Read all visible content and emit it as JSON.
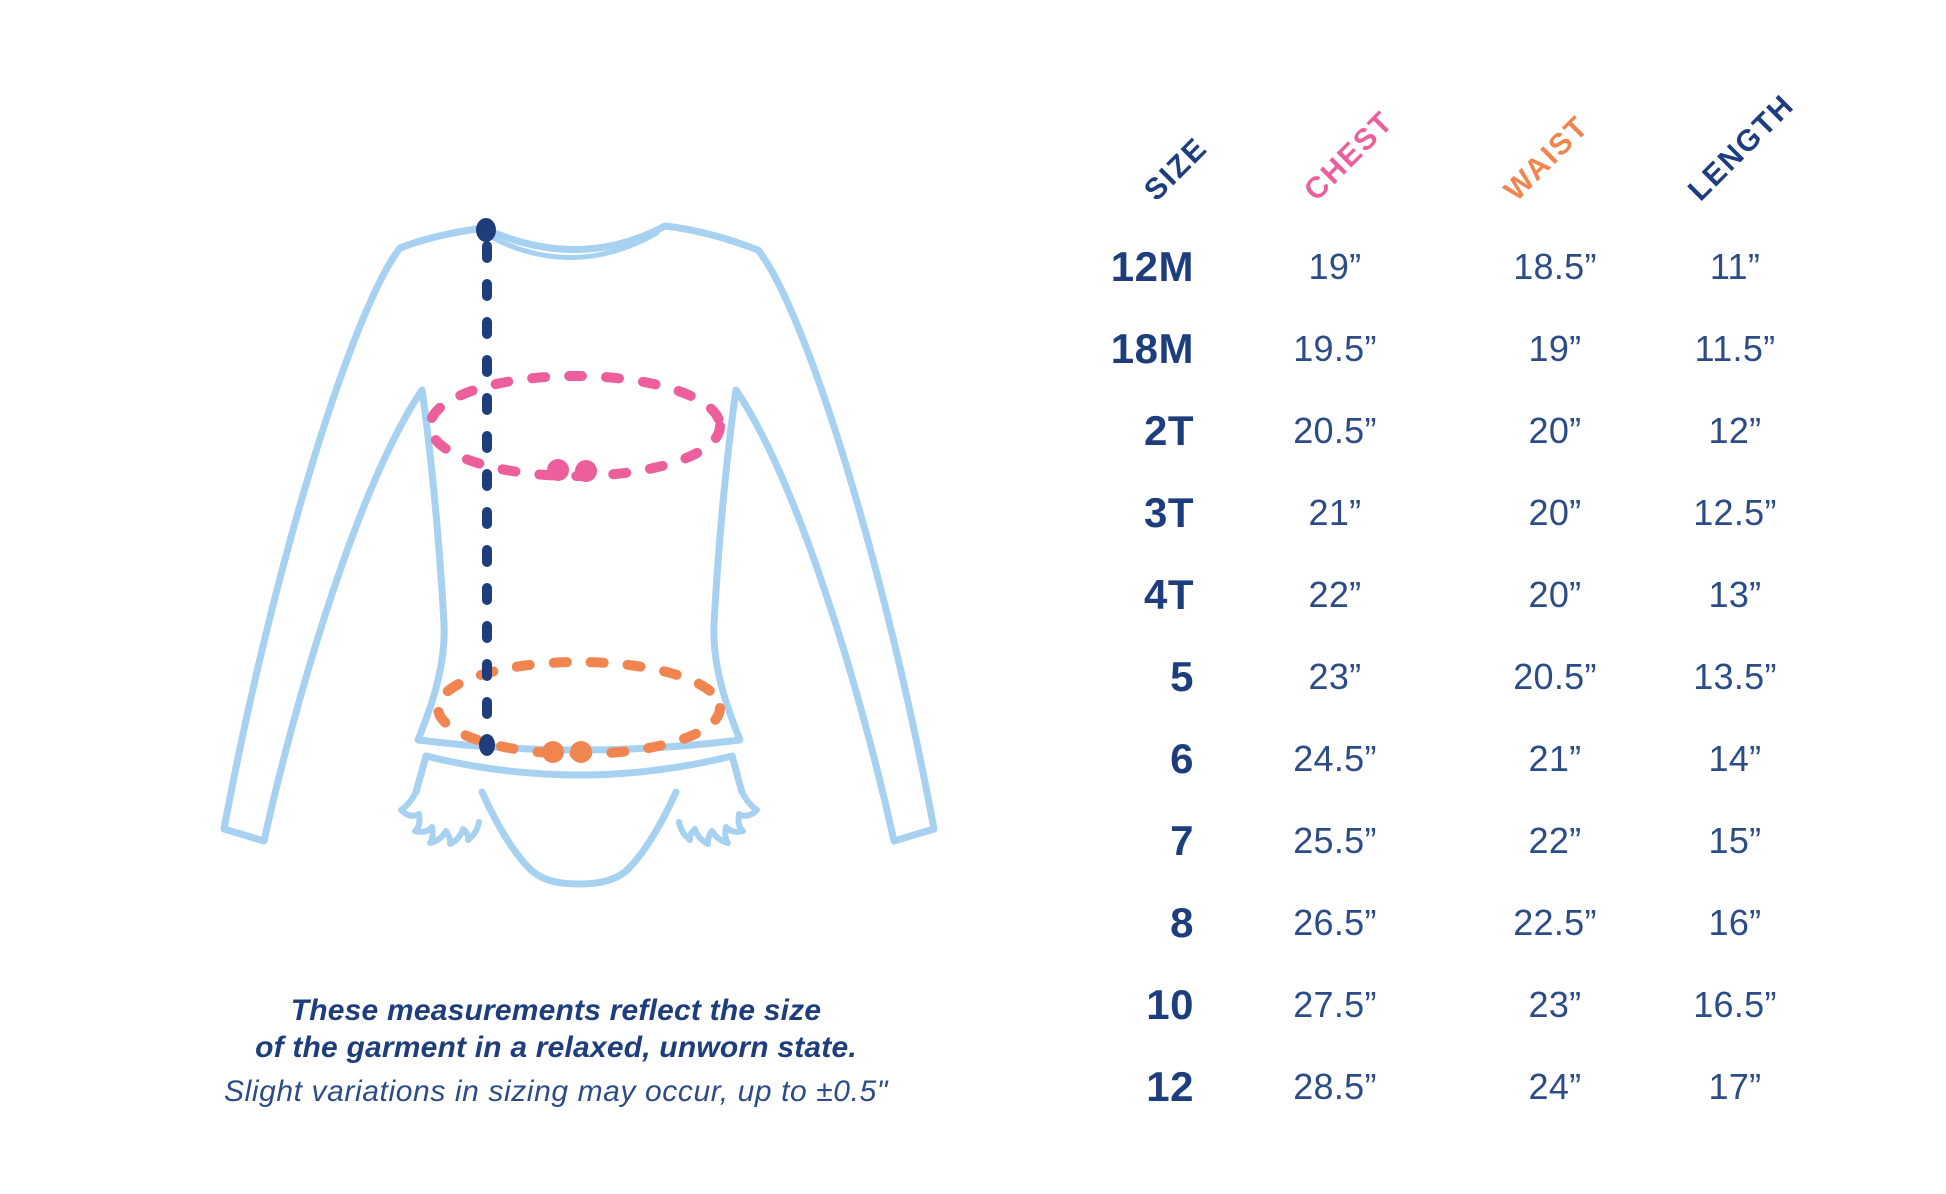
{
  "colors": {
    "background": "#ffffff",
    "navy": "#1d3d7d",
    "value_navy": "#2c4c87",
    "pink": "#ec5e9c",
    "orange": "#f08550",
    "light_blue": "#a7d1f1"
  },
  "size_chart": {
    "columns": [
      {
        "key": "size",
        "label": "SIZE",
        "color": "navy"
      },
      {
        "key": "chest",
        "label": "CHEST",
        "color": "pink"
      },
      {
        "key": "waist",
        "label": "WAIST",
        "color": "orange"
      },
      {
        "key": "length",
        "label": "LENGTH",
        "color": "navy"
      }
    ],
    "rows": [
      {
        "size": "12M",
        "chest": "19”",
        "waist": "18.5”",
        "length": "11”"
      },
      {
        "size": "18M",
        "chest": "19.5”",
        "waist": "19”",
        "length": "11.5”"
      },
      {
        "size": "2T",
        "chest": "20.5”",
        "waist": "20”",
        "length": "12”"
      },
      {
        "size": "3T",
        "chest": "21”",
        "waist": "20”",
        "length": "12.5”"
      },
      {
        "size": "4T",
        "chest": "22”",
        "waist": "20”",
        "length": "13”"
      },
      {
        "size": "5",
        "chest": "23”",
        "waist": "20.5”",
        "length": "13.5”"
      },
      {
        "size": "6",
        "chest": "24.5”",
        "waist": "21”",
        "length": "14”"
      },
      {
        "size": "7",
        "chest": "25.5”",
        "waist": "22”",
        "length": "15”"
      },
      {
        "size": "8",
        "chest": "26.5”",
        "waist": "22.5”",
        "length": "16”"
      },
      {
        "size": "10",
        "chest": "27.5”",
        "waist": "23”",
        "length": "16.5”"
      },
      {
        "size": "12",
        "chest": "28.5”",
        "waist": "24”",
        "length": "17”"
      }
    ]
  },
  "notes": {
    "line1": "These measurements reflect the size",
    "line2": "of the garment in a relaxed, unworn state.",
    "line3": "Slight variations in sizing may occur, up to ±0.5\""
  },
  "diagram": {
    "garment": "Long-sleeve rash guard top with ruffle-trim swim bottom (line illustration)",
    "measurements": [
      {
        "name": "chest",
        "indicator": "pink dashed ellipse around chest"
      },
      {
        "name": "waist",
        "indicator": "orange dashed ellipse around waist"
      },
      {
        "name": "length",
        "indicator": "navy dashed vertical line from shoulder point to hem"
      }
    ]
  },
  "chart_data": {
    "type": "table",
    "columns": [
      "SIZE",
      "CHEST",
      "WAIST",
      "LENGTH"
    ],
    "categories": [
      "12M",
      "18M",
      "2T",
      "3T",
      "4T",
      "5",
      "6",
      "7",
      "8",
      "10",
      "12"
    ],
    "series": [
      {
        "name": "CHEST",
        "values": [
          19,
          19.5,
          20.5,
          21,
          22,
          23,
          24.5,
          25.5,
          26.5,
          27.5,
          28.5
        ]
      },
      {
        "name": "WAIST",
        "values": [
          18.5,
          19,
          20,
          20,
          20,
          20.5,
          21,
          22,
          22.5,
          23,
          24
        ]
      },
      {
        "name": "LENGTH",
        "values": [
          11,
          11.5,
          12,
          12.5,
          13,
          13.5,
          14,
          15,
          16,
          16.5,
          17
        ]
      }
    ],
    "units": "inches",
    "legend_position": "none",
    "grid": false
  }
}
